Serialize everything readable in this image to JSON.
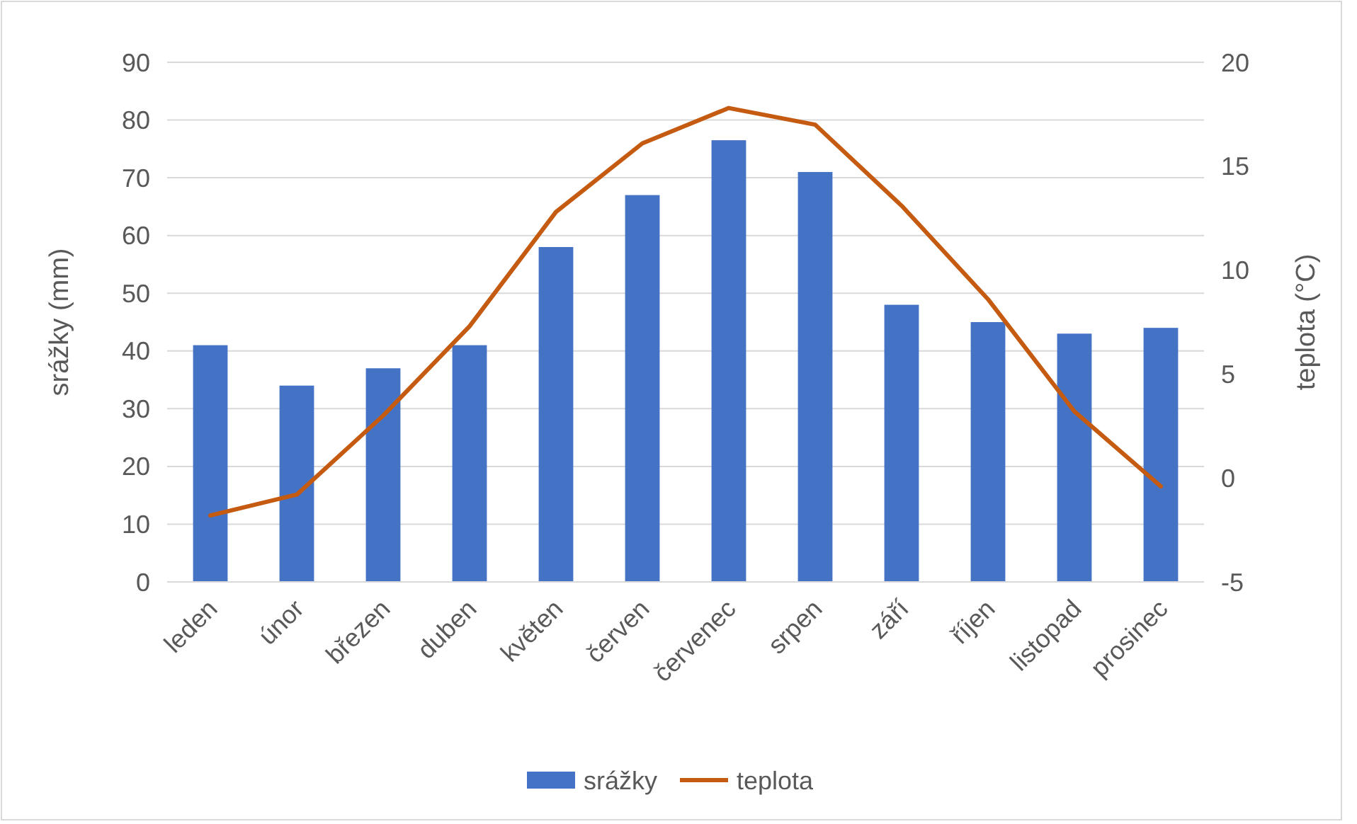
{
  "chart_data": {
    "type": "bar",
    "ylabel": "srážky (mm)",
    "y2label": "teplota (°C)",
    "categories": [
      "leden",
      "únor",
      "březen",
      "duben",
      "květen",
      "červen",
      "červenec",
      "srpen",
      "září",
      "říjen",
      "listopad",
      "prosinec"
    ],
    "series": [
      {
        "name": "srážky",
        "color": "#4472c4",
        "values": [
          41,
          34,
          37,
          41,
          58,
          67,
          76.5,
          71,
          48,
          45,
          43,
          44
        ]
      },
      {
        "name": "teplota",
        "type": "line",
        "axis": "y2",
        "color": "#c55a11",
        "values": [
          -1.8,
          -0.8,
          3,
          7.3,
          12.8,
          16.1,
          17.8,
          17,
          13.1,
          8.6,
          3.2,
          -0.4
        ]
      }
    ],
    "ylim": [
      0,
      90
    ],
    "yticks": [
      0,
      10,
      20,
      30,
      40,
      50,
      60,
      70,
      80,
      90
    ],
    "y2lim": [
      -5,
      20
    ],
    "y2ticks": [
      -5,
      0,
      5,
      10,
      15,
      20
    ],
    "grid": "y",
    "legend": "bottom",
    "marker": "none",
    "line_style": "solid"
  }
}
